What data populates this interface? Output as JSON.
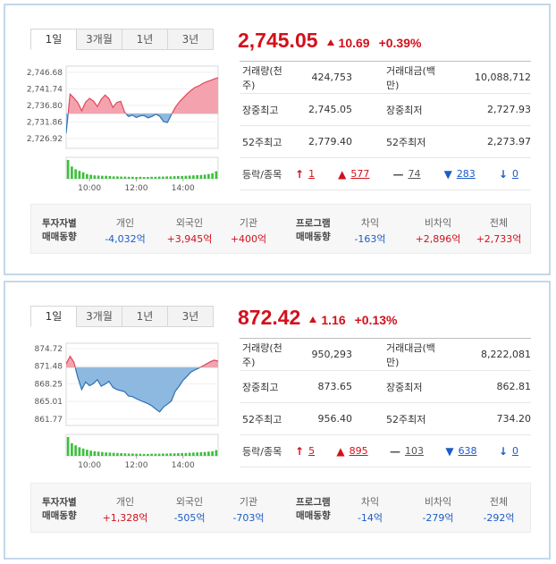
{
  "panels": [
    {
      "tabs": [
        "1일",
        "3개월",
        "1년",
        "3년"
      ],
      "price": "2,745.05",
      "change": "10.69",
      "change_pct": "+0.39%",
      "stats": {
        "volume_label": "거래량(천주)",
        "volume": "424,753",
        "amount_label": "거래대금(백만)",
        "amount": "10,088,712",
        "day_high_label": "장중최고",
        "day_high": "2,745.05",
        "day_low_label": "장중최저",
        "day_low": "2,727.93",
        "wk52_high_label": "52주최고",
        "wk52_high": "2,779.40",
        "wk52_low_label": "52주최저",
        "wk52_low": "2,273.97",
        "updown_label": "등락/종목",
        "upper_limit": "1",
        "rise": "577",
        "flat": "74",
        "fall": "283",
        "lower_limit": "0"
      },
      "investors": {
        "title_line1": "투자자별",
        "title_line2": "매매동향",
        "individual_label": "개인",
        "individual": "-4,032억",
        "foreign_label": "외국인",
        "foreign": "+3,945억",
        "institution_label": "기관",
        "institution": "+400억",
        "program_line1": "프로그램",
        "program_line2": "매매동향",
        "arbitrage_label": "차익",
        "arbitrage": "-163억",
        "nonarbitrage_label": "비차익",
        "nonarbitrage": "+2,896억",
        "total_label": "전체",
        "total": "+2,733억"
      },
      "chart_data": {
        "type": "area",
        "y_ticks": [
          "2,746.68",
          "2,741.74",
          "2,736.80",
          "2,731.86",
          "2,726.92"
        ],
        "ylim": [
          2724.0,
          2748.5
        ],
        "x_ticks": [
          "10:00",
          "12:00",
          "14:00"
        ],
        "x_range": [
          "09:00",
          "15:30"
        ],
        "baseline": 2734.36,
        "series": [
          {
            "x": [
              "09:00",
              "09:10",
              "09:20",
              "09:30",
              "09:40",
              "09:50",
              "10:00",
              "10:10",
              "10:20",
              "10:30",
              "10:40",
              "10:50",
              "11:00",
              "11:10",
              "11:20",
              "11:30",
              "11:40",
              "11:50",
              "12:00",
              "12:10",
              "12:20",
              "12:30",
              "12:40",
              "12:50",
              "13:00",
              "13:10",
              "13:20",
              "13:30",
              "13:40",
              "13:50",
              "14:00",
              "14:10",
              "14:20",
              "14:30",
              "14:40",
              "14:50",
              "15:00",
              "15:10",
              "15:20",
              "15:30"
            ],
            "values": [
              2728.5,
              2740.2,
              2739.0,
              2737.6,
              2735.2,
              2737.8,
              2738.9,
              2738.1,
              2736.5,
              2738.6,
              2739.9,
              2738.8,
              2736.2,
              2737.7,
              2738.0,
              2734.8,
              2733.5,
              2733.9,
              2733.2,
              2733.7,
              2733.8,
              2733.1,
              2733.5,
              2734.2,
              2733.6,
              2732.0,
              2731.7,
              2734.0,
              2736.2,
              2737.8,
              2739.0,
              2740.2,
              2741.2,
              2742.1,
              2742.6,
              2743.3,
              2743.8,
              2744.2,
              2744.7,
              2745.05
            ]
          }
        ],
        "volume": [
          95,
          62,
          48,
          40,
          33,
          24,
          20,
          17,
          16,
          15,
          15,
          14,
          12,
          12,
          11,
          11,
          10,
          10,
          9,
          10,
          9,
          9,
          10,
          10,
          11,
          11,
          12,
          12,
          13,
          14,
          14,
          15,
          16,
          17,
          18,
          19,
          21,
          24,
          28,
          38
        ],
        "colors": {
          "up": "#f4a3ae",
          "up_line": "#e0475b",
          "down": "#8db9e0",
          "down_line": "#2f6fb3",
          "volume": "#3cbf3c"
        }
      }
    },
    {
      "tabs": [
        "1일",
        "3개월",
        "1년",
        "3년"
      ],
      "price": "872.42",
      "change": "1.16",
      "change_pct": "+0.13%",
      "stats": {
        "volume_label": "거래량(천주)",
        "volume": "950,293",
        "amount_label": "거래대금(백만)",
        "amount": "8,222,081",
        "day_high_label": "장중최고",
        "day_high": "873.65",
        "day_low_label": "장중최저",
        "day_low": "862.81",
        "wk52_high_label": "52주최고",
        "wk52_high": "956.40",
        "wk52_low_label": "52주최저",
        "wk52_low": "734.20",
        "updown_label": "등락/종목",
        "upper_limit": "5",
        "rise": "895",
        "flat": "103",
        "fall": "638",
        "lower_limit": "0"
      },
      "investors": {
        "title_line1": "투자자별",
        "title_line2": "매매동향",
        "individual_label": "개인",
        "individual": "+1,328억",
        "foreign_label": "외국인",
        "foreign": "-505억",
        "institution_label": "기관",
        "institution": "-703억",
        "program_line1": "프로그램",
        "program_line2": "매매동향",
        "arbitrage_label": "차익",
        "arbitrage": "-14억",
        "nonarbitrage_label": "비차익",
        "nonarbitrage": "-279억",
        "total_label": "전체",
        "total": "-292억"
      },
      "chart_data": {
        "type": "area",
        "y_ticks": [
          "874.72",
          "871.48",
          "868.25",
          "865.01",
          "861.77"
        ],
        "ylim": [
          860.6,
          875.7
        ],
        "x_ticks": [
          "10:00",
          "12:00",
          "14:00"
        ],
        "x_range": [
          "09:00",
          "15:30"
        ],
        "baseline": 871.26,
        "series": [
          {
            "x": [
              "09:00",
              "09:10",
              "09:20",
              "09:30",
              "09:40",
              "09:50",
              "10:00",
              "10:10",
              "10:20",
              "10:30",
              "10:40",
              "10:50",
              "11:00",
              "11:10",
              "11:20",
              "11:30",
              "11:40",
              "11:50",
              "12:00",
              "12:10",
              "12:20",
              "12:30",
              "12:40",
              "12:50",
              "13:00",
              "13:10",
              "13:20",
              "13:30",
              "13:40",
              "13:50",
              "14:00",
              "14:10",
              "14:20",
              "14:30",
              "14:40",
              "14:50",
              "15:00",
              "15:10",
              "15:20",
              "15:30"
            ],
            "values": [
              871.9,
              873.3,
              872.2,
              869.4,
              867.2,
              868.6,
              867.9,
              868.3,
              869.0,
              867.8,
              868.2,
              868.7,
              867.6,
              867.2,
              867.0,
              866.8,
              866.0,
              865.9,
              865.5,
              865.2,
              864.9,
              864.6,
              864.2,
              863.6,
              863.1,
              864.0,
              864.5,
              865.1,
              866.9,
              867.8,
              868.9,
              869.6,
              870.4,
              870.8,
              871.1,
              871.5,
              871.9,
              872.3,
              872.6,
              872.42
            ]
          }
        ],
        "volume": [
          98,
          66,
          55,
          45,
          38,
          32,
          27,
          24,
          22,
          20,
          18,
          17,
          16,
          15,
          14,
          13,
          12,
          12,
          11,
          11,
          10,
          10,
          11,
          11,
          11,
          12,
          12,
          13,
          13,
          14,
          15,
          15,
          16,
          17,
          18,
          19,
          20,
          22,
          24,
          30
        ],
        "colors": {
          "up": "#f4a3ae",
          "up_line": "#e0475b",
          "down": "#8db9e0",
          "down_line": "#2f6fb3",
          "volume": "#3cbf3c"
        }
      }
    }
  ]
}
